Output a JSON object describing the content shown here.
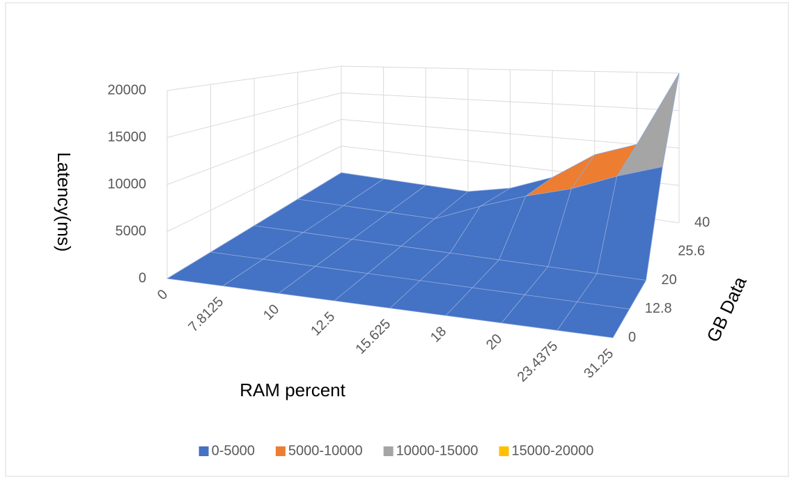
{
  "chart_data": {
    "type": "surface3d",
    "z_label": "Latency(ms)",
    "x_label": "RAM percent",
    "y_label": "GB Data",
    "categories": [
      0,
      7.8125,
      10,
      12.5,
      15.625,
      18,
      20,
      23.4375,
      31.25
    ],
    "series": [
      {
        "name": 0,
        "values": [
          0,
          0,
          0,
          0,
          0,
          0,
          0,
          0,
          0
        ]
      },
      {
        "name": 12.8,
        "values": [
          0,
          0,
          0,
          0,
          0,
          0,
          0,
          0,
          0
        ]
      },
      {
        "name": 20,
        "values": [
          0,
          0,
          0,
          0,
          0,
          0,
          0,
          0,
          0
        ]
      },
      {
        "name": 25.6,
        "values": [
          0,
          0,
          0,
          0,
          2500,
          4500,
          6000,
          8000,
          9500
        ]
      },
      {
        "name": 40,
        "values": [
          0,
          0,
          0,
          0,
          1500,
          4000,
          8000,
          10000,
          20000
        ]
      }
    ],
    "zlim": [
      0,
      20000
    ],
    "zticks": [
      0,
      5000,
      10000,
      15000,
      20000
    ],
    "bands": [
      {
        "name": "0-5000",
        "color": "#4472c4"
      },
      {
        "name": "5000-10000",
        "color": "#ed7d31"
      },
      {
        "name": "10000-15000",
        "color": "#a5a5a5"
      },
      {
        "name": "15000-20000",
        "color": "#ffc000"
      }
    ],
    "legend": "bottom",
    "grid": true
  }
}
